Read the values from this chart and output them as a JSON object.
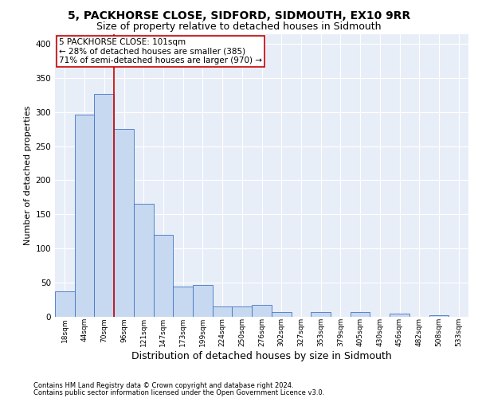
{
  "title": "5, PACKHORSE CLOSE, SIDFORD, SIDMOUTH, EX10 9RR",
  "subtitle": "Size of property relative to detached houses in Sidmouth",
  "xlabel": "Distribution of detached houses by size in Sidmouth",
  "ylabel": "Number of detached properties",
  "bar_labels": [
    "18sqm",
    "44sqm",
    "70sqm",
    "96sqm",
    "121sqm",
    "147sqm",
    "173sqm",
    "199sqm",
    "224sqm",
    "250sqm",
    "276sqm",
    "302sqm",
    "327sqm",
    "353sqm",
    "379sqm",
    "405sqm",
    "430sqm",
    "456sqm",
    "482sqm",
    "508sqm",
    "533sqm"
  ],
  "bar_values": [
    37,
    296,
    327,
    275,
    165,
    120,
    44,
    46,
    15,
    15,
    17,
    6,
    0,
    7,
    0,
    6,
    0,
    4,
    0,
    2,
    0
  ],
  "bar_color": "#c6d9f0",
  "bar_edge_color": "#4472c4",
  "property_line_x": 3,
  "property_line_label": "5 PACKHORSE CLOSE: 101sqm",
  "annotation_line1": "← 28% of detached houses are smaller (385)",
  "annotation_line2": "71% of semi-detached houses are larger (970) →",
  "annotation_box_color": "#ffffff",
  "annotation_box_edge_color": "#cc0000",
  "vline_color": "#cc0000",
  "ylim": [
    0,
    415
  ],
  "yticks": [
    0,
    50,
    100,
    150,
    200,
    250,
    300,
    350,
    400
  ],
  "footer1": "Contains HM Land Registry data © Crown copyright and database right 2024.",
  "footer2": "Contains public sector information licensed under the Open Government Licence v3.0.",
  "bg_color": "#e8eef8",
  "grid_color": "#ffffff",
  "title_fontsize": 10,
  "subtitle_fontsize": 9,
  "annotation_fontsize": 7.5,
  "ylabel_fontsize": 8,
  "xlabel_fontsize": 9,
  "footer_fontsize": 6,
  "tick_fontsize": 6.5
}
